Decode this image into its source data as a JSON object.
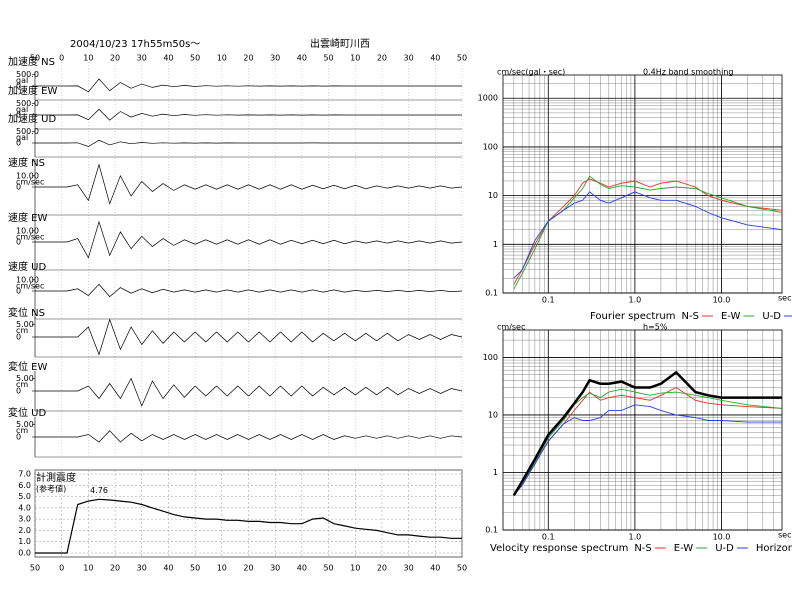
{
  "chart_data": [
    {
      "type": "line",
      "title": "出雲崎町川西",
      "subtitle": "2004/10/23  17h55m50s～",
      "xlim": [
        0,
        160
      ],
      "xticks": [
        {
          "value": 0,
          "label": "50"
        },
        {
          "value": 10,
          "label": "0"
        },
        {
          "value": 20,
          "label": "10"
        },
        {
          "value": 30,
          "label": "20"
        },
        {
          "value": 40,
          "label": "30"
        },
        {
          "value": 50,
          "label": "40"
        },
        {
          "value": 60,
          "label": "50"
        },
        {
          "value": 70,
          "label": "10"
        },
        {
          "value": 80,
          "label": "20"
        },
        {
          "value": 90,
          "label": "30"
        },
        {
          "value": 100,
          "label": "40"
        },
        {
          "value": 110,
          "label": "50"
        },
        {
          "value": 120,
          "label": "10"
        },
        {
          "value": 130,
          "label": "20"
        },
        {
          "value": 140,
          "label": "30"
        },
        {
          "value": 150,
          "label": "40"
        },
        {
          "value": 160,
          "label": "50"
        }
      ],
      "x": [
        0,
        4,
        8,
        12,
        16,
        20,
        24,
        28,
        32,
        36,
        40,
        44,
        48,
        52,
        56,
        60,
        64,
        68,
        72,
        76,
        80,
        84,
        88,
        92,
        96,
        100,
        104,
        108,
        112,
        116,
        120,
        124,
        128,
        132,
        136,
        140,
        144,
        148,
        152,
        156,
        160
      ],
      "series": [
        {
          "name": "加速度 NS",
          "unit": "gal",
          "color": "#000000",
          "ylim": [
            -600,
            600
          ],
          "yticks": [
            {
              "value": 500,
              "label": "500.0"
            },
            0
          ],
          "values": [
            0,
            0,
            0,
            0,
            5,
            -250,
            300,
            -200,
            150,
            -100,
            80,
            -60,
            40,
            -30,
            25,
            -20,
            15,
            -10,
            10,
            -8,
            8,
            -6,
            5,
            -5,
            4,
            -4,
            3,
            -3,
            3,
            -2,
            2,
            -2,
            2,
            -2,
            1,
            -1,
            1,
            -1,
            1,
            -1,
            0
          ]
        },
        {
          "name": "加速度 EW",
          "unit": "gal",
          "color": "#000000",
          "ylim": [
            -600,
            600
          ],
          "yticks": [
            {
              "value": 500,
              "label": "500.0"
            },
            0
          ],
          "values": [
            0,
            0,
            0,
            0,
            5,
            -200,
            250,
            -220,
            150,
            -90,
            70,
            -50,
            40,
            -30,
            20,
            -15,
            12,
            -10,
            8,
            -6,
            5,
            -4,
            4,
            -3,
            3,
            -3,
            5,
            -4,
            3,
            -2,
            2,
            -2,
            2,
            -1,
            1,
            -1,
            1,
            -1,
            1,
            -1,
            0
          ]
        },
        {
          "name": "加速度 UD",
          "unit": "gal",
          "color": "#000000",
          "ylim": [
            -600,
            600
          ],
          "yticks": [
            {
              "value": 500,
              "label": "500.0"
            },
            0
          ],
          "values": [
            0,
            0,
            0,
            0,
            10,
            -150,
            120,
            -80,
            50,
            -30,
            20,
            -15,
            10,
            -8,
            6,
            -5,
            4,
            -3,
            3,
            -2,
            2,
            -2,
            2,
            -1,
            1,
            -1,
            3,
            -2,
            1,
            -1,
            1,
            -1,
            1,
            -1,
            1,
            -1,
            0,
            0,
            0,
            0,
            0
          ]
        },
        {
          "name": "速度 NS",
          "unit": "cm/sec",
          "color": "#000000",
          "ylim": [
            -25,
            25
          ],
          "yticks": [
            {
              "value": 10,
              "label": "10.00"
            },
            0
          ],
          "values": [
            0,
            0,
            0,
            0,
            2,
            -12,
            20,
            -15,
            10,
            -8,
            5,
            -4,
            3,
            -3,
            2,
            -2,
            2,
            -2,
            2,
            -2,
            2,
            -2,
            2,
            -2,
            2,
            -2,
            1.5,
            -1.5,
            1.5,
            -1.5,
            1.5,
            -1.5,
            1,
            -1,
            1,
            -1,
            1,
            -1,
            1,
            -1,
            0
          ]
        },
        {
          "name": "速度 EW",
          "unit": "cm/sec",
          "color": "#000000",
          "ylim": [
            -25,
            25
          ],
          "yticks": [
            {
              "value": 10,
              "label": "10.00"
            },
            0
          ],
          "values": [
            0,
            0,
            0,
            0,
            3,
            -14,
            18,
            -12,
            9,
            -6,
            5,
            -4,
            3,
            -3,
            2,
            -2,
            2,
            -2,
            2,
            -2,
            2,
            -2,
            2,
            -2,
            1.5,
            -1.5,
            1.5,
            -1.5,
            1.5,
            -1.5,
            1,
            -1,
            1,
            -1,
            1,
            -1,
            1,
            -1,
            1,
            -1,
            0
          ]
        },
        {
          "name": "速度 UD",
          "unit": "cm/sec",
          "color": "#000000",
          "ylim": [
            -25,
            25
          ],
          "yticks": [
            {
              "value": 10,
              "label": "10.00"
            },
            0
          ],
          "values": [
            0,
            0,
            0,
            0,
            2,
            -4,
            6,
            -5,
            3,
            -2,
            2,
            -1.5,
            1.5,
            -1,
            1,
            -1,
            1,
            -1,
            1,
            -1,
            1,
            -1,
            1,
            -1,
            1,
            -1,
            1,
            -1,
            1,
            -1,
            0.5,
            -0.5,
            0.5,
            -0.5,
            0.5,
            -0.5,
            0.5,
            -0.5,
            0.5,
            -0.5,
            0
          ]
        },
        {
          "name": "変位 NS",
          "unit": "cm",
          "color": "#000000",
          "ylim": [
            -8,
            8
          ],
          "yticks": [
            {
              "value": 5,
              "label": "5.00"
            },
            0
          ],
          "values": [
            0,
            0,
            0,
            0,
            0,
            4,
            -7,
            7,
            -5,
            4,
            -3,
            2.5,
            -2.5,
            2,
            -2,
            2,
            -2,
            2,
            -2,
            2,
            -2,
            2,
            -2,
            2,
            -2,
            2,
            -2,
            1.5,
            -1.5,
            1.5,
            -1.5,
            1.5,
            -1.5,
            1.5,
            -1.5,
            1,
            -1,
            1,
            -1,
            1,
            0
          ]
        },
        {
          "name": "変位 EW",
          "unit": "cm",
          "color": "#000000",
          "ylim": [
            -8,
            8
          ],
          "yticks": [
            {
              "value": 5,
              "label": "5.00"
            },
            0
          ],
          "values": [
            0,
            0,
            0,
            0,
            0,
            2,
            -3,
            3,
            -3,
            5,
            -6,
            4,
            -3,
            2.5,
            -2.5,
            2,
            -2,
            2,
            -2,
            2,
            -2,
            2,
            -2,
            2,
            -2,
            2,
            -2,
            1.5,
            -1.5,
            1.5,
            -1.5,
            1.5,
            -1.5,
            1.5,
            -1.5,
            1,
            -1,
            1,
            -1,
            1,
            0
          ]
        },
        {
          "name": "変位 UD",
          "unit": "cm",
          "color": "#000000",
          "ylim": [
            -8,
            8
          ],
          "yticks": [
            {
              "value": 5,
              "label": "5.00"
            },
            0
          ],
          "values": [
            0,
            0,
            0,
            0,
            0,
            1,
            -2,
            2.5,
            -2,
            1.5,
            -1.5,
            1,
            -1,
            1,
            -1,
            1,
            -1,
            1,
            -1,
            1,
            -1,
            1,
            -1,
            1,
            -1,
            1,
            -1,
            1,
            -1,
            0.5,
            -0.5,
            0.5,
            -0.5,
            0.5,
            -0.5,
            0.5,
            -0.5,
            0.5,
            -0.5,
            0.5,
            0
          ]
        }
      ]
    },
    {
      "type": "line",
      "title": "計測震度",
      "subtitle": "(参考値)",
      "xlim": [
        0,
        160
      ],
      "ylim": [
        0,
        7
      ],
      "yticks": [
        {
          "value": 0,
          "label": "0.0"
        },
        {
          "value": 1,
          "label": "1.0"
        },
        {
          "value": 2,
          "label": "2.0"
        },
        {
          "value": 3,
          "label": "3.0"
        },
        {
          "value": 4,
          "label": "4.0"
        },
        {
          "value": 5,
          "label": "5.0"
        },
        {
          "value": 6,
          "label": "6.0"
        },
        {
          "value": 7,
          "label": "7.0"
        }
      ],
      "x": [
        0,
        4,
        8,
        12,
        16,
        20,
        24,
        28,
        32,
        36,
        40,
        44,
        48,
        52,
        56,
        60,
        64,
        68,
        72,
        76,
        80,
        84,
        88,
        92,
        96,
        100,
        104,
        108,
        112,
        116,
        120,
        124,
        128,
        132,
        136,
        140,
        144,
        148,
        152,
        156,
        160
      ],
      "values": [
        0,
        0,
        0,
        0,
        4.3,
        4.6,
        4.76,
        4.7,
        4.6,
        4.5,
        4.3,
        4.0,
        3.7,
        3.4,
        3.2,
        3.1,
        3.0,
        3.0,
        2.9,
        2.9,
        2.8,
        2.8,
        2.7,
        2.7,
        2.6,
        2.6,
        3.0,
        3.1,
        2.6,
        2.4,
        2.2,
        2.1,
        2.0,
        1.8,
        1.6,
        1.6,
        1.5,
        1.4,
        1.4,
        1.3,
        1.3
      ],
      "peak_label": "4.76",
      "color": "#000000"
    },
    {
      "type": "loglog",
      "legend_title": "Fourier spectrum",
      "unit": "cm/sec(gal・sec)",
      "note": "0.4Hz band smoothing",
      "xunit": "sec",
      "xlim": [
        0.03,
        50
      ],
      "ylim": [
        0.1,
        3000
      ],
      "xticks": [
        0.1,
        {
          "value": 1,
          "label": "1.0"
        },
        {
          "value": 10,
          "label": "10.0"
        }
      ],
      "yticks": [
        0.1,
        1,
        10,
        100,
        1000
      ],
      "x": [
        0.04,
        0.05,
        0.07,
        0.1,
        0.15,
        0.2,
        0.25,
        0.3,
        0.4,
        0.5,
        0.7,
        1,
        1.5,
        2,
        3,
        5,
        7,
        10,
        20,
        50
      ],
      "series": [
        {
          "name": "N-S",
          "color": "#e8302a",
          "values": [
            0.15,
            0.3,
            1,
            3,
            6,
            10,
            18,
            22,
            18,
            15,
            18,
            20,
            15,
            18,
            20,
            15,
            10,
            8,
            6,
            5
          ]
        },
        {
          "name": "E-W",
          "color": "#1fae2a",
          "values": [
            0.12,
            0.25,
            0.8,
            3,
            5,
            9,
            14,
            25,
            17,
            14,
            16,
            15,
            13,
            14,
            15,
            14,
            11,
            9,
            6,
            4.5
          ]
        },
        {
          "name": "U-D",
          "color": "#2a3fe0",
          "values": [
            0.2,
            0.3,
            1.2,
            3,
            5,
            7,
            8,
            12,
            8,
            7,
            9,
            12,
            9,
            8,
            8,
            6,
            4.5,
            3.5,
            2.5,
            2
          ]
        }
      ]
    },
    {
      "type": "loglog",
      "legend_title": "Velocity response spectrum",
      "unit": "cm/sec",
      "note": "h=5%",
      "xunit": "sec",
      "xlim": [
        0.03,
        50
      ],
      "ylim": [
        0.1,
        300
      ],
      "xticks": [
        0.1,
        {
          "value": 1,
          "label": "1.0"
        },
        {
          "value": 10,
          "label": "10.0"
        }
      ],
      "yticks": [
        0.1,
        1,
        10,
        100
      ],
      "x": [
        0.04,
        0.05,
        0.07,
        0.1,
        0.15,
        0.2,
        0.25,
        0.3,
        0.4,
        0.5,
        0.7,
        1,
        1.5,
        2,
        3,
        5,
        7,
        10,
        20,
        50
      ],
      "series": [
        {
          "name": "N-S",
          "color": "#e8302a",
          "values": [
            0.4,
            0.6,
            1.5,
            3.5,
            7,
            12,
            18,
            25,
            18,
            20,
            22,
            20,
            18,
            22,
            30,
            18,
            16,
            15,
            14,
            13
          ]
        },
        {
          "name": "E-W",
          "color": "#1fae2a",
          "values": [
            0.4,
            0.6,
            1.5,
            4,
            8,
            15,
            20,
            24,
            20,
            25,
            28,
            25,
            22,
            24,
            25,
            22,
            20,
            18,
            15,
            13
          ]
        },
        {
          "name": "U-D",
          "color": "#2a3fe0",
          "values": [
            0.4,
            0.6,
            1.4,
            3.5,
            7,
            9,
            8,
            8,
            9,
            12,
            12,
            15,
            14,
            12,
            10,
            9,
            8,
            8,
            7.5,
            7.5
          ]
        },
        {
          "name": "Horizon",
          "color": "#000000",
          "linewidth": 2.5,
          "values": [
            0.4,
            0.7,
            1.7,
            4.5,
            9,
            16,
            25,
            40,
            35,
            35,
            38,
            30,
            30,
            35,
            55,
            25,
            22,
            20,
            20,
            20
          ]
        }
      ]
    }
  ]
}
